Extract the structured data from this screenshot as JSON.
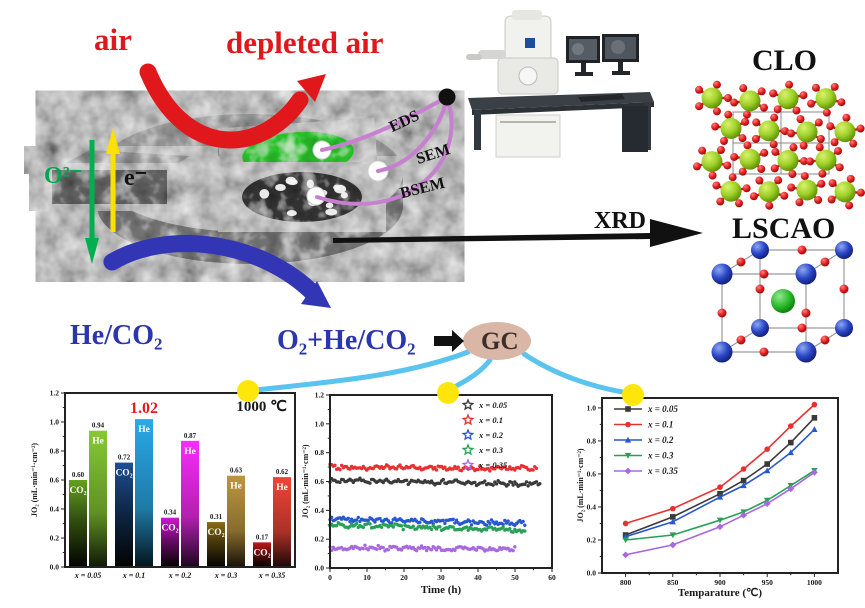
{
  "schematic": {
    "air_label": "air",
    "depleted_air_label": "depleted air",
    "o2_ion_label": "O²⁻",
    "electron_label": "e⁻",
    "eds_label": "EDS",
    "sem_label": "SEM",
    "bsem_label": "BSEM",
    "xrd_label": "XRD",
    "clo_label": "CLO",
    "lscao_label": "LSCAO",
    "he_co2_label": "He/CO₂",
    "o2_he_co2_label": "O₂+He/CO₂",
    "gc_label": "GC",
    "colors": {
      "red": "#e0181c",
      "deep_blue": "#2b35ae",
      "arrow_blue": "#3336b4",
      "connector_blue": "#5ac4ee",
      "dot_yellow": "#ffe60a",
      "gc_fill": "#d9b6a6",
      "curve_purple": "#c77fd0",
      "green_arrow": "#00b050",
      "yellow_arrow": "#ffe000",
      "ion_green": "#00a550"
    }
  },
  "chart_data": [
    {
      "type": "bar",
      "temperature_annotation": "1000 ℃",
      "ylabel": "JO₂ (mL·min⁻¹·cm⁻²)",
      "ylim": [
        0,
        1.2
      ],
      "ytick_step": 0.2,
      "categories": [
        "x = 0.05",
        "x = 0.1",
        "x = 0.2",
        "x = 0.3",
        "x = 0.35"
      ],
      "series": [
        {
          "name": "CO₂",
          "values": [
            0.6,
            0.72,
            0.34,
            0.31,
            0.17
          ],
          "colors": [
            "#63a01f",
            "#1d4f93",
            "#cf16cf",
            "#8a6b15",
            "#c01818"
          ]
        },
        {
          "name": "He",
          "values": [
            0.94,
            1.02,
            0.87,
            0.63,
            0.62
          ],
          "colors": [
            "#85ca34",
            "#2aa9e8",
            "#f72df7",
            "#bd9640",
            "#f04438"
          ]
        }
      ],
      "highlight": {
        "category_index": 1,
        "series_index": 1,
        "label": "1.02",
        "color": "#e8191c"
      }
    },
    {
      "type": "scatter",
      "xlabel": "Time (h)",
      "ylabel": "JO₂ (mL·min⁻¹·cm⁻²)",
      "xlim": [
        0,
        60
      ],
      "xtick_step": 10,
      "ylim": [
        0,
        1.2
      ],
      "ytick_step": 0.2,
      "legend_position": "top-right",
      "series": [
        {
          "name": "x = 0.05",
          "color": "#3a3a3a",
          "start": 0.61,
          "end": 0.58,
          "t_end": 57
        },
        {
          "name": "x = 0.1",
          "color": "#e83030",
          "start": 0.7,
          "end": 0.69,
          "t_end": 56
        },
        {
          "name": "x = 0.2",
          "color": "#2858d0",
          "start": 0.34,
          "end": 0.31,
          "t_end": 53
        },
        {
          "name": "x = 0.3",
          "color": "#28a058",
          "start": 0.3,
          "end": 0.26,
          "t_end": 53
        },
        {
          "name": "x = 0.35",
          "color": "#a868e0",
          "start": 0.14,
          "end": 0.13,
          "t_end": 50
        }
      ]
    },
    {
      "type": "line",
      "xlabel": "Temparature (℃)",
      "ylabel": "JO₂ (mL·min⁻¹·cm⁻²)",
      "x": [
        800,
        850,
        900,
        925,
        950,
        975,
        1000
      ],
      "xticks": [
        800,
        850,
        900,
        950,
        1000
      ],
      "ylim": [
        0,
        1.06
      ],
      "ytick_step": 0.2,
      "legend_position": "top-left",
      "series": [
        {
          "name": "x = 0.05",
          "color": "#3a3a3a",
          "marker": "square",
          "values": [
            0.23,
            0.34,
            0.48,
            0.56,
            0.66,
            0.79,
            0.94
          ]
        },
        {
          "name": "x = 0.1",
          "color": "#e83030",
          "marker": "circle",
          "values": [
            0.3,
            0.39,
            0.52,
            0.63,
            0.75,
            0.89,
            1.02
          ]
        },
        {
          "name": "x = 0.2",
          "color": "#2858d0",
          "marker": "triangle",
          "values": [
            0.22,
            0.31,
            0.46,
            0.53,
            0.62,
            0.73,
            0.87
          ]
        },
        {
          "name": "x = 0.3",
          "color": "#28a058",
          "marker": "triangle-down",
          "values": [
            0.2,
            0.23,
            0.32,
            0.37,
            0.44,
            0.53,
            0.62
          ]
        },
        {
          "name": "x = 0.35",
          "color": "#a868e0",
          "marker": "diamond",
          "values": [
            0.11,
            0.17,
            0.28,
            0.35,
            0.42,
            0.51,
            0.61
          ]
        }
      ]
    }
  ]
}
